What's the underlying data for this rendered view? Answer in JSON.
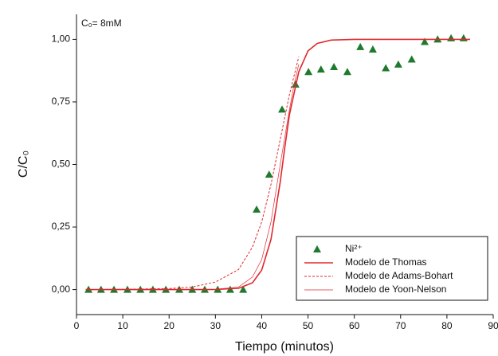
{
  "chart_data": {
    "type": "scatter",
    "annotation": "C₀= 8mM",
    "x_label": "Tiempo (minutos)",
    "y_label": "C/C₀",
    "xlim": [
      0,
      90
    ],
    "xticks": [
      0,
      10,
      20,
      30,
      40,
      50,
      60,
      70,
      80,
      90
    ],
    "ylim": [
      -0.1,
      1.1
    ],
    "yticks": [
      {
        "value": 0,
        "label": "0,00"
      },
      {
        "value": 0.25,
        "label": "0,25"
      },
      {
        "value": 0.5,
        "label": "0,50"
      },
      {
        "value": 0.75,
        "label": "0,75"
      },
      {
        "value": 1,
        "label": "1,00"
      }
    ],
    "grid": false,
    "legend": "lower right",
    "series": [
      {
        "name": "Ni²⁺",
        "mode": "markers",
        "color": "#1f7a2e",
        "x": [
          2.6,
          5.3,
          8.1,
          11,
          13.8,
          16.5,
          19.3,
          22.2,
          25,
          27.7,
          30.5,
          33.2,
          36,
          38.9,
          41.6,
          44.4,
          47.3,
          50.1,
          52.8,
          55.6,
          58.5,
          61.3,
          64,
          66.8,
          69.5,
          72.4,
          75.2,
          78,
          80.9,
          83.6
        ],
        "values": [
          0,
          0,
          0,
          0,
          0,
          0,
          0,
          0,
          0,
          0,
          0,
          0,
          0,
          0.32,
          0.46,
          0.72,
          0.82,
          0.87,
          0.88,
          0.89,
          0.87,
          0.97,
          0.96,
          0.885,
          0.9,
          0.92,
          0.99,
          1.0,
          1.005,
          1.005
        ]
      },
      {
        "name": "Modelo de Thomas",
        "mode": "lines",
        "dash": "solid",
        "color": "#e0282e",
        "x": [
          2,
          10,
          20,
          30,
          35,
          38,
          40,
          42,
          44,
          45,
          46,
          48,
          50,
          52,
          55,
          60,
          70,
          80,
          85
        ],
        "values": [
          0,
          0,
          0,
          0.0003,
          0.005,
          0.027,
          0.078,
          0.2,
          0.43,
          0.57,
          0.7,
          0.87,
          0.954,
          0.984,
          0.997,
          1.0,
          1.0,
          1.0,
          1.0
        ]
      },
      {
        "name": "Modelo de Adams-Bohart",
        "mode": "lines",
        "dash": "dashed",
        "color": "#e0282e",
        "x": [
          2,
          10,
          20,
          25,
          30,
          35,
          38,
          40,
          42,
          44,
          46,
          48
        ],
        "values": [
          0,
          0.001,
          0.004,
          0.01,
          0.03,
          0.08,
          0.17,
          0.27,
          0.42,
          0.6,
          0.78,
          0.93
        ]
      },
      {
        "name": "Modelo de Yoon-Nelson",
        "mode": "lines",
        "dash": "thin",
        "color": "#e0282e",
        "x": [
          2,
          10,
          20,
          30,
          35,
          38,
          40,
          42,
          44,
          46,
          47,
          48
        ],
        "values": [
          0,
          0,
          0,
          0.001,
          0.01,
          0.05,
          0.12,
          0.27,
          0.5,
          0.72,
          0.82,
          0.9
        ]
      }
    ]
  }
}
